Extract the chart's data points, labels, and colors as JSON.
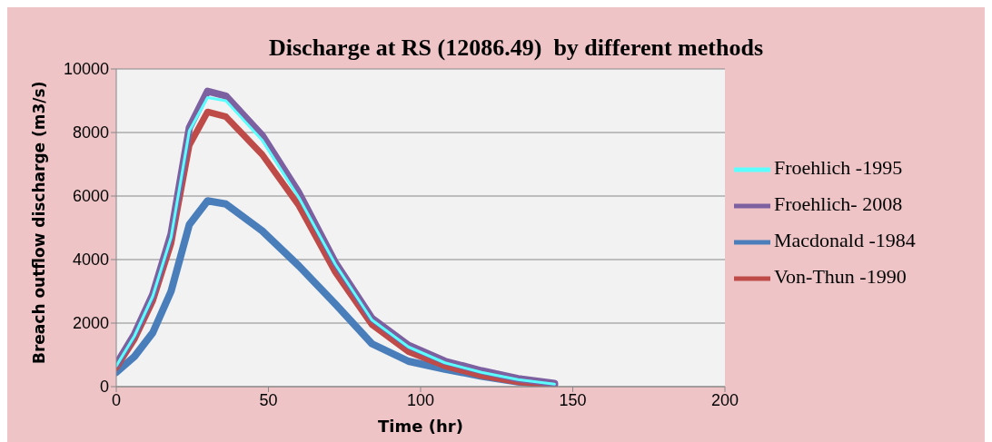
{
  "chart_data": {
    "type": "line",
    "title": "Discharge at RS (12086.49)  by different methods",
    "xlabel": "Time (hr)",
    "ylabel": "Breach outflow discharge (m3/s)",
    "x": [
      0,
      6,
      12,
      18,
      24,
      30,
      36,
      48,
      60,
      72,
      84,
      96,
      108,
      120,
      132,
      144
    ],
    "series": [
      {
        "name": "Macdonald -1984",
        "color": "#4a7ebb",
        "values": [
          450,
          950,
          1700,
          3000,
          5100,
          5850,
          5750,
          4900,
          3800,
          2600,
          1350,
          800,
          550,
          330,
          150,
          50
        ]
      },
      {
        "name": "Von-Thun -1990",
        "color": "#be4b48",
        "values": [
          600,
          1500,
          2700,
          4500,
          7600,
          8650,
          8500,
          7300,
          5700,
          3600,
          1950,
          1100,
          650,
          350,
          150,
          50
        ]
      },
      {
        "name": "Froehlich -1995",
        "color": "#5cffff",
        "values": [
          650,
          1600,
          2850,
          4700,
          8050,
          9100,
          9000,
          7750,
          5950,
          3850,
          2100,
          1250,
          750,
          450,
          220,
          80
        ]
      },
      {
        "name": "Froehlich- 2008",
        "color": "#7d60a0",
        "values": [
          700,
          1650,
          2900,
          4800,
          8150,
          9300,
          9150,
          7900,
          6100,
          3900,
          2150,
          1300,
          800,
          500,
          250,
          100
        ]
      }
    ],
    "xlim": [
      0,
      200
    ],
    "xticks": [
      0,
      50,
      100,
      150,
      200
    ],
    "ylim": [
      0,
      10000
    ],
    "yticks": [
      0,
      2000,
      4000,
      6000,
      8000,
      10000
    ],
    "grid": "y",
    "legend": "right",
    "marker": "none",
    "line_style": "solid"
  }
}
